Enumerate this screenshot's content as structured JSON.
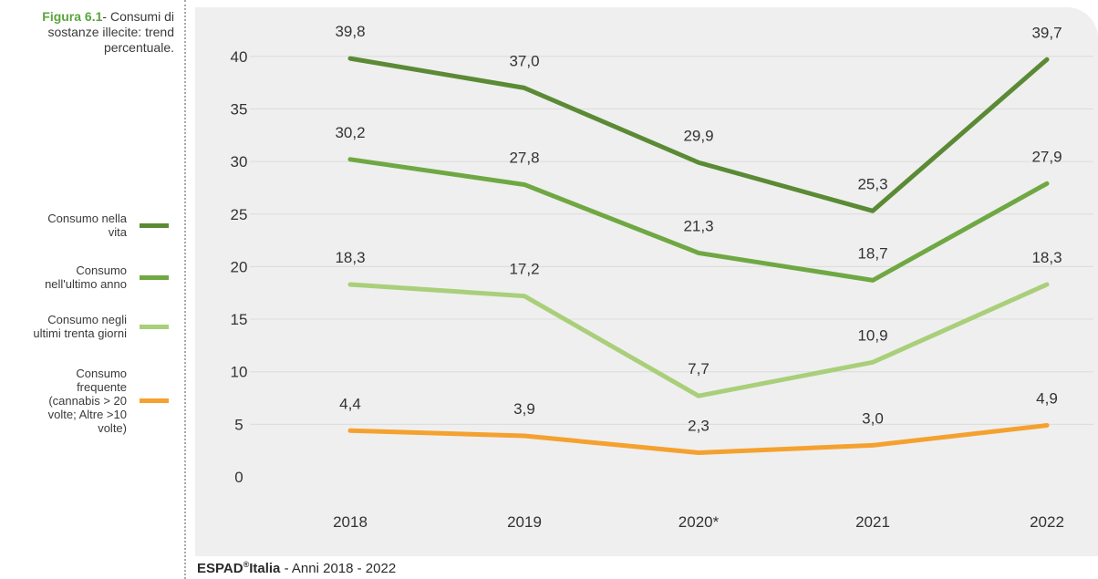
{
  "caption": {
    "figure_label": "Figura 6.1",
    "text": "- Consumi di sostanze illecite: trend percentuale."
  },
  "source": {
    "brand": "ESPAD",
    "registered": "®",
    "brand_suffix": "Italia",
    "text": " - Anni 2018 - 2022"
  },
  "colors": {
    "vita": "#5b8a35",
    "anno": "#6fa843",
    "trenta": "#a9cf7a",
    "frequente": "#f5a12f",
    "fig_label": "#5aa53c"
  },
  "chart_data": {
    "type": "line",
    "title": "",
    "xlabel": "",
    "ylabel": "",
    "categories": [
      "2018",
      "2019",
      "2020*",
      "2021",
      "2022"
    ],
    "ylim": [
      0,
      40
    ],
    "yticks": [
      0,
      5,
      10,
      15,
      20,
      25,
      30,
      35,
      40
    ],
    "grid": "horizontal",
    "legend_position": "left",
    "series": [
      {
        "key": "vita",
        "name": "Consumo nella vita",
        "legend_lines": [
          "Consumo nella",
          "vita"
        ],
        "values": [
          39.8,
          37.0,
          29.9,
          25.3,
          39.7
        ],
        "labels": [
          "39,8",
          "37,0",
          "29,9",
          "25,3",
          "39,7"
        ]
      },
      {
        "key": "anno",
        "name": "Consumo nell'ultimo anno",
        "legend_lines": [
          "Consumo",
          "nell'ultimo anno"
        ],
        "values": [
          30.2,
          27.8,
          21.3,
          18.7,
          27.9
        ],
        "labels": [
          "30,2",
          "27,8",
          "21,3",
          "18,7",
          "27,9"
        ]
      },
      {
        "key": "trenta",
        "name": "Consumo negli ultimi trenta giorni",
        "legend_lines": [
          "Consumo negli",
          "ultimi trenta giorni"
        ],
        "values": [
          18.3,
          17.2,
          7.7,
          10.9,
          18.3
        ],
        "labels": [
          "18,3",
          "17,2",
          "7,7",
          "10,9",
          "18,3"
        ]
      },
      {
        "key": "frequente",
        "name": "Consumo frequente (cannabis > 20 volte; Altre >10 volte)",
        "legend_lines": [
          "Consumo",
          "frequente",
          "(cannabis > 20",
          "volte; Altre >10",
          "volte)"
        ],
        "values": [
          4.4,
          3.9,
          2.3,
          3.0,
          4.9
        ],
        "labels": [
          "4,4",
          "3,9",
          "2,3",
          "3,0",
          "4,9"
        ]
      }
    ]
  }
}
